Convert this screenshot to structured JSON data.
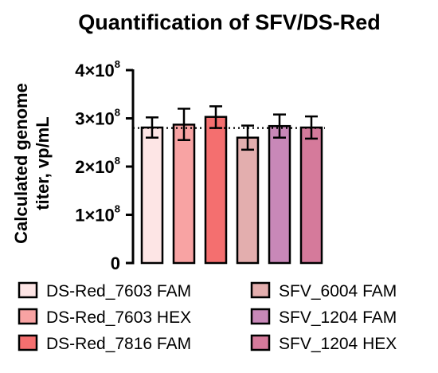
{
  "chart_data": {
    "type": "bar",
    "title": "Quantification of SFV/DS-Red",
    "ylabel_lines": [
      "Calculated genome",
      "titer, vp/mL"
    ],
    "ylim": [
      0,
      400000000
    ],
    "yticks": [
      {
        "value": 0,
        "mantissa": "0",
        "exp": ""
      },
      {
        "value": 100000000,
        "mantissa": "1×10",
        "exp": "8"
      },
      {
        "value": 200000000,
        "mantissa": "2×10",
        "exp": "8"
      },
      {
        "value": 300000000,
        "mantissa": "3×10",
        "exp": "8"
      },
      {
        "value": 400000000,
        "mantissa": "4×10",
        "exp": "8"
      }
    ],
    "reference_line": 280000000,
    "series": [
      {
        "name": "DS-Red_7603 FAM",
        "value": 281000000,
        "err_low": 260000000,
        "err_high": 302000000,
        "color": "#fde5e5"
      },
      {
        "name": "DS-Red_7603 HEX",
        "value": 287000000,
        "err_low": 255000000,
        "err_high": 320000000,
        "color": "#f8a3a3"
      },
      {
        "name": "DS-Red_7816 FAM",
        "value": 303000000,
        "err_low": 280000000,
        "err_high": 325000000,
        "color": "#f46f6f"
      },
      {
        "name": "SFV_6004 FAM",
        "value": 260000000,
        "err_low": 235000000,
        "err_high": 285000000,
        "color": "#e3aeae"
      },
      {
        "name": "SFV_1204 FAM",
        "value": 284000000,
        "err_low": 260000000,
        "err_high": 308000000,
        "color": "#c888b8"
      },
      {
        "name": "SFV_1204 HEX",
        "value": 281000000,
        "err_low": 258000000,
        "err_high": 304000000,
        "color": "#d57a9b"
      }
    ],
    "legend_position": "bottom",
    "grid": false
  }
}
